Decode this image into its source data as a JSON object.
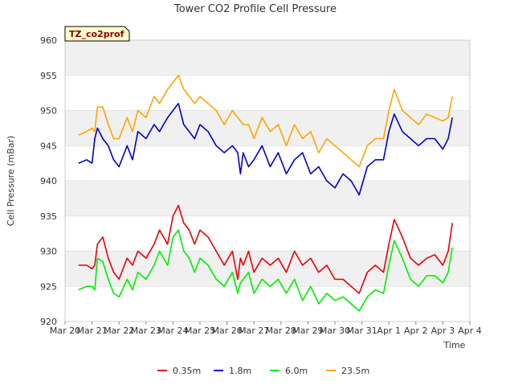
{
  "chart_data": {
    "type": "line",
    "title": "Tower CO2 Profile Cell Pressure",
    "site_label": "TZ_co2prof",
    "xlabel": "Time",
    "ylabel": "Cell Pressure (mBar)",
    "x_tick_labels": [
      "Mar 20",
      "Mar 21",
      "Mar 22",
      "Mar 23",
      "Mar 24",
      "Mar 25",
      "Mar 26",
      "Mar 27",
      "Mar 28",
      "Mar 29",
      "Mar 30",
      "Mar 31",
      "Apr 1",
      "Apr 2",
      "Apr 3",
      "Apr 4"
    ],
    "xlim": [
      0,
      15
    ],
    "ylim": [
      920,
      960
    ],
    "y_ticks": [
      920,
      925,
      930,
      935,
      940,
      945,
      950,
      955,
      960
    ],
    "grid": "horizontal bands",
    "legend_position": "bottom",
    "series": [
      {
        "name": "0.35m",
        "color": "#e8000b",
        "x": [
          0.5,
          0.8,
          1.0,
          1.1,
          1.2,
          1.4,
          1.6,
          1.8,
          2.0,
          2.3,
          2.5,
          2.7,
          3.0,
          3.3,
          3.5,
          3.8,
          4.0,
          4.2,
          4.4,
          4.6,
          4.8,
          5.0,
          5.3,
          5.6,
          5.9,
          6.2,
          6.4,
          6.5,
          6.6,
          6.8,
          7.0,
          7.3,
          7.6,
          7.9,
          8.2,
          8.5,
          8.8,
          9.1,
          9.4,
          9.7,
          10.0,
          10.3,
          10.6,
          10.9,
          11.2,
          11.5,
          11.8,
          12.0,
          12.2,
          12.5,
          12.8,
          13.1,
          13.4,
          13.7,
          14.0,
          14.2,
          14.35
        ],
        "y": [
          928,
          928,
          927.5,
          928,
          931,
          932,
          929,
          927,
          926,
          929,
          928,
          930,
          929,
          931,
          933,
          931,
          935,
          936.5,
          934,
          933,
          931,
          933,
          932,
          930,
          928,
          930,
          926,
          929,
          928,
          930,
          927,
          929,
          928,
          929,
          927,
          930,
          928,
          929,
          927,
          928,
          926,
          926,
          925,
          924,
          927,
          928,
          927,
          931,
          934.5,
          932,
          929,
          928,
          929,
          929.5,
          928,
          930,
          934
        ]
      },
      {
        "name": "1.8m",
        "color": "#0000cc",
        "x": [
          0.5,
          0.8,
          1.0,
          1.1,
          1.2,
          1.4,
          1.6,
          1.8,
          2.0,
          2.3,
          2.5,
          2.7,
          3.0,
          3.3,
          3.5,
          3.8,
          4.0,
          4.2,
          4.4,
          4.6,
          4.8,
          5.0,
          5.3,
          5.6,
          5.9,
          6.2,
          6.4,
          6.5,
          6.6,
          6.8,
          7.0,
          7.3,
          7.6,
          7.9,
          8.2,
          8.5,
          8.8,
          9.1,
          9.4,
          9.7,
          10.0,
          10.3,
          10.6,
          10.9,
          11.2,
          11.5,
          11.8,
          12.0,
          12.2,
          12.5,
          12.8,
          13.1,
          13.4,
          13.7,
          14.0,
          14.2,
          14.35
        ],
        "y": [
          942.5,
          943,
          942.5,
          946,
          947.5,
          946,
          945,
          943,
          942,
          945,
          943,
          947,
          946,
          948,
          947,
          949,
          950,
          951,
          948,
          947,
          946,
          948,
          947,
          945,
          944,
          945,
          944,
          941,
          944,
          942,
          943,
          945,
          942,
          944,
          941,
          943,
          944,
          941,
          942,
          940,
          939,
          941,
          940,
          938,
          942,
          943,
          943,
          947,
          949.5,
          947,
          946,
          945,
          946,
          946,
          944.5,
          946,
          949
        ]
      },
      {
        "name": "6.0m",
        "color": "#00ee00",
        "x": [
          0.5,
          0.8,
          1.0,
          1.1,
          1.2,
          1.4,
          1.6,
          1.8,
          2.0,
          2.3,
          2.5,
          2.7,
          3.0,
          3.3,
          3.5,
          3.8,
          4.0,
          4.2,
          4.4,
          4.6,
          4.8,
          5.0,
          5.3,
          5.6,
          5.9,
          6.2,
          6.4,
          6.5,
          6.6,
          6.8,
          7.0,
          7.3,
          7.6,
          7.9,
          8.2,
          8.5,
          8.8,
          9.1,
          9.4,
          9.7,
          10.0,
          10.3,
          10.6,
          10.9,
          11.2,
          11.5,
          11.8,
          12.0,
          12.2,
          12.5,
          12.8,
          13.1,
          13.4,
          13.7,
          14.0,
          14.2,
          14.35
        ],
        "y": [
          924.5,
          925,
          925,
          924.5,
          929,
          928.5,
          926,
          924,
          923.5,
          926,
          924.5,
          927,
          926,
          928,
          930,
          928,
          932,
          933,
          930,
          929,
          927,
          929,
          928,
          926,
          925,
          927,
          924,
          925.5,
          926,
          927,
          924,
          926,
          925,
          926,
          924,
          926,
          923,
          925,
          922.5,
          924,
          923,
          923.5,
          922.5,
          921.5,
          923.5,
          924.5,
          924,
          928,
          931.5,
          929,
          926,
          925,
          926.5,
          926.5,
          925.5,
          927,
          930.5
        ]
      },
      {
        "name": "23.5m",
        "color": "#ffa500",
        "x": [
          0.5,
          0.8,
          1.0,
          1.1,
          1.2,
          1.4,
          1.6,
          1.8,
          2.0,
          2.3,
          2.5,
          2.7,
          3.0,
          3.3,
          3.5,
          3.8,
          4.0,
          4.2,
          4.4,
          4.6,
          4.8,
          5.0,
          5.3,
          5.6,
          5.9,
          6.2,
          6.4,
          6.5,
          6.6,
          6.8,
          7.0,
          7.3,
          7.6,
          7.9,
          8.2,
          8.5,
          8.8,
          9.1,
          9.4,
          9.7,
          10.0,
          10.3,
          10.6,
          10.9,
          11.2,
          11.5,
          11.8,
          12.0,
          12.2,
          12.5,
          12.8,
          13.1,
          13.4,
          13.7,
          14.0,
          14.2,
          14.35
        ],
        "y": [
          946.5,
          947,
          947.5,
          947,
          950.5,
          950.5,
          948,
          946,
          946,
          949,
          947,
          950,
          949,
          952,
          951,
          953,
          954,
          955,
          953,
          952,
          951,
          952,
          951,
          950,
          948,
          950,
          949,
          948.5,
          948,
          948,
          946,
          949,
          947,
          948,
          945,
          948,
          946,
          947,
          944,
          946,
          945,
          944,
          943,
          942,
          945,
          946,
          946,
          950,
          953,
          950,
          949,
          948,
          949.5,
          949,
          948.5,
          949,
          952
        ]
      }
    ]
  }
}
